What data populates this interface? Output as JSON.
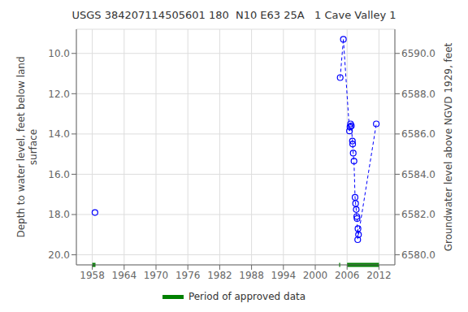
{
  "chart_data": {
    "type": "scatter",
    "title": "USGS 384207114505601 180  N10 E63 25A   1 Cave Valley 1",
    "y_label": "Depth to water level, feet below land\nsurface",
    "y2_label": "Groundwater level above NGVD 1929, feet",
    "xlim": [
      1955,
      2015
    ],
    "xticks": [
      1958,
      1964,
      1970,
      1976,
      1982,
      1988,
      1994,
      2000,
      2006,
      2012
    ],
    "ylim": [
      20.5,
      8.8
    ],
    "yticks": [
      {
        "value": 10.0,
        "label": "10.0"
      },
      {
        "value": 12.0,
        "label": "12.0"
      },
      {
        "value": 14.0,
        "label": "14.0"
      },
      {
        "value": 16.0,
        "label": "16.0"
      },
      {
        "value": 18.0,
        "label": "18.0"
      },
      {
        "value": 20.0,
        "label": "20.0"
      }
    ],
    "y2lim": [
      6579.5,
      6591.2
    ],
    "y2ticks": [
      {
        "value": 6580.0,
        "label": "6580.0"
      },
      {
        "value": 6582.0,
        "label": "6582.0"
      },
      {
        "value": 6584.0,
        "label": "6584.0"
      },
      {
        "value": 6586.0,
        "label": "6586.0"
      },
      {
        "value": 6588.0,
        "label": "6588.0"
      },
      {
        "value": 6590.0,
        "label": "6590.0"
      }
    ],
    "grid": true,
    "series": [
      {
        "type": "line",
        "line_style": "dashed",
        "marker": "none",
        "color": "#0000ff",
        "x": [
          2004.7,
          2005.3
        ],
        "values": [
          11.2,
          9.3
        ]
      },
      {
        "type": "line",
        "line_style": "dashed",
        "marker": "none",
        "color": "#0000ff",
        "x": [
          2005.3,
          2006.45
        ],
        "values": [
          9.3,
          13.85
        ]
      },
      {
        "type": "line",
        "line_style": "dashed",
        "marker": "none",
        "color": "#0000ff",
        "x": [
          2006.45,
          2006.55,
          2006.65,
          2006.8,
          2007.0,
          2007.05,
          2007.15,
          2007.3,
          2007.5,
          2007.6,
          2007.72,
          2007.82,
          2007.88,
          2008.0,
          2008.05,
          2008.15
        ],
        "values": [
          13.85,
          13.65,
          13.5,
          13.6,
          14.35,
          14.5,
          14.95,
          15.35,
          17.15,
          17.45,
          17.75,
          18.1,
          18.2,
          19.25,
          18.7,
          19.0
        ]
      },
      {
        "type": "line",
        "line_style": "dashed",
        "marker": "none",
        "color": "#0000ff",
        "x": [
          2008.15,
          2011.5
        ],
        "values": [
          19.0,
          13.5
        ]
      },
      {
        "type": "scatter",
        "marker": "open_circle",
        "color": "#0000ff",
        "x": [
          1958.5,
          2004.7,
          2005.3,
          2006.45,
          2006.55,
          2006.65,
          2006.8,
          2007.0,
          2007.05,
          2007.15,
          2007.3,
          2007.5,
          2007.6,
          2007.72,
          2007.82,
          2007.88,
          2008.0,
          2008.05,
          2008.15,
          2011.5
        ],
        "values": [
          17.9,
          11.2,
          9.3,
          13.85,
          13.65,
          13.5,
          13.6,
          14.35,
          14.5,
          14.95,
          15.35,
          17.15,
          17.45,
          17.75,
          18.1,
          18.2,
          19.25,
          18.7,
          19.0,
          13.5
        ]
      },
      {
        "type": "period",
        "name": "Period of approved data",
        "color": "#008000",
        "ranges": [
          [
            1958.0,
            1958.6
          ],
          [
            2004.5,
            2004.7
          ],
          [
            2006.0,
            2012.0
          ]
        ]
      }
    ]
  }
}
